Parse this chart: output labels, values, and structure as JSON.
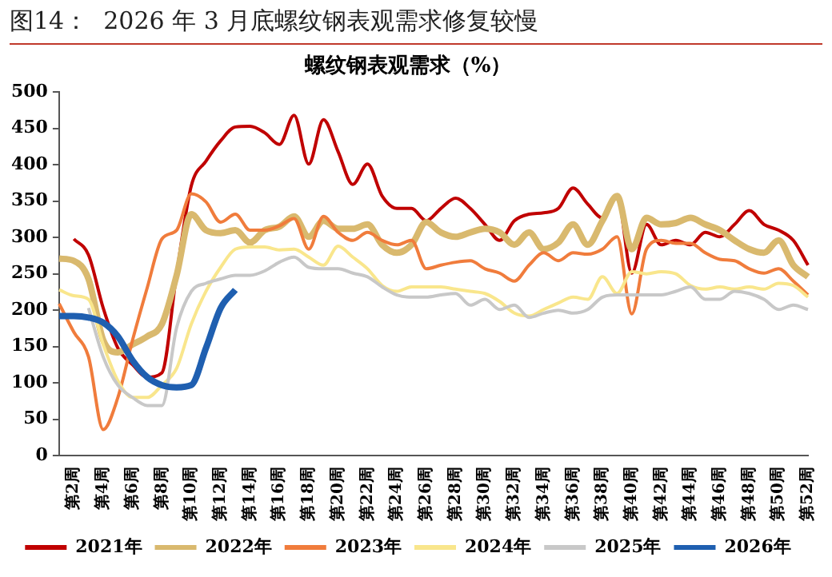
{
  "chart_data": {
    "type": "line",
    "title": "图14：  2026 年 3 月底螺纹钢表观需求修复较慢",
    "subtitle": "螺纹钢表观需求（%）",
    "categories": [
      null,
      "第2周",
      null,
      "第4周",
      null,
      "第6周",
      null,
      "第8周",
      null,
      "第10周",
      null,
      "第12周",
      null,
      "第14周",
      null,
      "第16周",
      null,
      "第18周",
      null,
      "第20周",
      null,
      "第22周",
      null,
      "第24周",
      null,
      "第26周",
      null,
      "第28周",
      null,
      "第30周",
      null,
      "第32周",
      null,
      "第34周",
      null,
      "第36周",
      null,
      "第38周",
      null,
      "第40周",
      null,
      "第42周",
      null,
      "第44周",
      null,
      "第46周",
      null,
      "第48周",
      null,
      "第50周",
      null,
      "第52周"
    ],
    "series": [
      {
        "name": "2021年",
        "color": "#c00000",
        "values": [
          null,
          298,
          276,
          203,
          148,
          125,
          108,
          114,
          250,
          371,
          405,
          433,
          452,
          453,
          444,
          428,
          468,
          401,
          462,
          418,
          373,
          401,
          357,
          340,
          340,
          323,
          340,
          354,
          340,
          318,
          296,
          323,
          332,
          334,
          340,
          368,
          346,
          327,
          357,
          251,
          318,
          290,
          296,
          290,
          307,
          301,
          318,
          337,
          318,
          310,
          296,
          262
        ]
      },
      {
        "name": "2022年",
        "color": "#d9b96e",
        "values": [
          271,
          268,
          243,
          159,
          142,
          153,
          164,
          181,
          248,
          332,
          310,
          306,
          310,
          293,
          310,
          315,
          329,
          301,
          323,
          312,
          312,
          318,
          290,
          279,
          290,
          321,
          307,
          301,
          307,
          312,
          307,
          290,
          307,
          284,
          293,
          318,
          290,
          323,
          357,
          284,
          327,
          318,
          320,
          327,
          318,
          310,
          296,
          284,
          279,
          296,
          262,
          246
        ]
      },
      {
        "name": "2023年",
        "color": "#f07c3c",
        "values": [
          209,
          170,
          136,
          36,
          80,
          159,
          231,
          298,
          310,
          360,
          349,
          321,
          332,
          310,
          310,
          316,
          326,
          284,
          329,
          307,
          296,
          307,
          296,
          290,
          296,
          257,
          262,
          266,
          268,
          257,
          251,
          240,
          262,
          279,
          268,
          279,
          277,
          284,
          301,
          195,
          284,
          296,
          292,
          292,
          279,
          270,
          268,
          257,
          251,
          257,
          240,
          221
        ]
      },
      {
        "name": "2024年",
        "color": "#f9e68c",
        "values": [
          228,
          220,
          215,
          153,
          103,
          80,
          80,
          97,
          120,
          181,
          226,
          259,
          284,
          287,
          287,
          283,
          284,
          273,
          262,
          288,
          273,
          257,
          234,
          226,
          232,
          232,
          232,
          229,
          226,
          223,
          212,
          196,
          192,
          201,
          210,
          218,
          215,
          246,
          223,
          253,
          250,
          253,
          250,
          234,
          229,
          232,
          229,
          232,
          229,
          237,
          234,
          218
        ]
      },
      {
        "name": "2025年",
        "color": "#c8c8c8",
        "values": [
          null,
          null,
          203,
          136,
          97,
          80,
          69,
          69,
          176,
          226,
          237,
          243,
          248,
          248,
          254,
          266,
          273,
          259,
          257,
          257,
          251,
          246,
          232,
          221,
          218,
          218,
          221,
          223,
          207,
          215,
          201,
          207,
          190,
          196,
          200,
          196,
          201,
          218,
          221,
          221,
          221,
          221,
          226,
          232,
          215,
          215,
          226,
          223,
          215,
          201,
          207,
          201
        ]
      },
      {
        "name": "2026年",
        "color": "#1f5fb0",
        "values": [
          192,
          192,
          190,
          183,
          164,
          131,
          108,
          97,
          94,
          97,
          148,
          203,
          228,
          null,
          null,
          null,
          null,
          null,
          null,
          null,
          null,
          null,
          null,
          null,
          null,
          null,
          null,
          null,
          null,
          null,
          null,
          null,
          null,
          null,
          null,
          null,
          null,
          null,
          null,
          null,
          null,
          null,
          null,
          null,
          null,
          null,
          null,
          null,
          null,
          null,
          null,
          null
        ]
      }
    ],
    "ylim": [
      0,
      500
    ],
    "yticks": [
      0,
      50,
      100,
      150,
      200,
      250,
      300,
      350,
      400,
      450,
      500
    ],
    "grid": false,
    "legend": "bottom",
    "marker": "none",
    "line_style": "solid"
  }
}
